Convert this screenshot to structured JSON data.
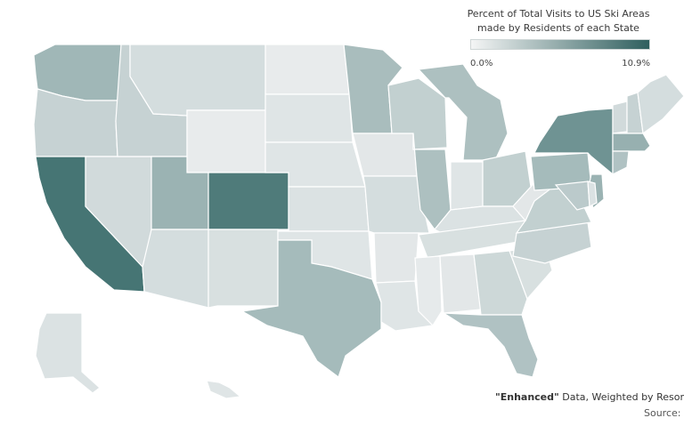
{
  "legend": {
    "title_line1": "Percent of Total Visits to US Ski Areas",
    "title_line2": "made by Residents of each State",
    "min_label": "0.0%",
    "max_label": "10.9%",
    "color_min": "#eef0f0",
    "color_max": "#3d6e6d"
  },
  "footnote": {
    "quoted": "\"Enhanced\"",
    "rest": " Data, Weighted by Resor"
  },
  "source_label": "Source:",
  "states": [
    {
      "id": "WA",
      "level": 0.45
    },
    {
      "id": "OR",
      "level": 0.24
    },
    {
      "id": "CA",
      "level": 0.95
    },
    {
      "id": "NV",
      "level": 0.18
    },
    {
      "id": "ID",
      "level": 0.24
    },
    {
      "id": "MT",
      "level": 0.16
    },
    {
      "id": "WY",
      "level": 0.05
    },
    {
      "id": "UT",
      "level": 0.48
    },
    {
      "id": "CO",
      "level": 0.9
    },
    {
      "id": "AZ",
      "level": 0.16
    },
    {
      "id": "NM",
      "level": 0.14
    },
    {
      "id": "ND",
      "level": 0.05
    },
    {
      "id": "SD",
      "level": 0.1
    },
    {
      "id": "NE",
      "level": 0.1
    },
    {
      "id": "KS",
      "level": 0.12
    },
    {
      "id": "OK",
      "level": 0.1
    },
    {
      "id": "TX",
      "level": 0.42
    },
    {
      "id": "MN",
      "level": 0.4
    },
    {
      "id": "IA",
      "level": 0.08
    },
    {
      "id": "MO",
      "level": 0.16
    },
    {
      "id": "AR",
      "level": 0.08
    },
    {
      "id": "LA",
      "level": 0.1
    },
    {
      "id": "WI",
      "level": 0.26
    },
    {
      "id": "IL",
      "level": 0.38
    },
    {
      "id": "MI",
      "level": 0.38
    },
    {
      "id": "IN",
      "level": 0.1
    },
    {
      "id": "OH",
      "level": 0.26
    },
    {
      "id": "KY",
      "level": 0.12
    },
    {
      "id": "TN",
      "level": 0.14
    },
    {
      "id": "MS",
      "level": 0.06
    },
    {
      "id": "AL",
      "level": 0.08
    },
    {
      "id": "GA",
      "level": 0.2
    },
    {
      "id": "FL",
      "level": 0.36
    },
    {
      "id": "SC",
      "level": 0.14
    },
    {
      "id": "NC",
      "level": 0.24
    },
    {
      "id": "VA",
      "level": 0.26
    },
    {
      "id": "WV",
      "level": 0.08
    },
    {
      "id": "PA",
      "level": 0.42
    },
    {
      "id": "NY",
      "level": 0.72
    },
    {
      "id": "VT",
      "level": 0.18
    },
    {
      "id": "NH",
      "level": 0.24
    },
    {
      "id": "ME",
      "level": 0.16
    },
    {
      "id": "MA",
      "level": 0.5
    },
    {
      "id": "CT",
      "level": 0.36
    },
    {
      "id": "NJ",
      "level": 0.48
    },
    {
      "id": "MD",
      "level": 0.3
    },
    {
      "id": "DE",
      "level": 0.12
    },
    {
      "id": "AK",
      "level": 0.12
    },
    {
      "id": "HI",
      "level": 0.1
    }
  ]
}
